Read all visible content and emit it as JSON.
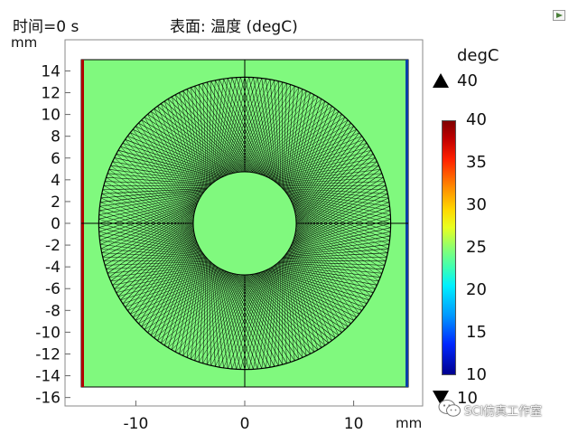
{
  "header": {
    "time_label": "时间=0 s",
    "plot_title": "表面: 温度 (degC)"
  },
  "plot": {
    "y_unit": "mm",
    "x_unit": "mm",
    "x_ticks": [
      "-10",
      "0",
      "10"
    ],
    "y_ticks": [
      "14",
      "12",
      "10",
      "8",
      "6",
      "4",
      "2",
      "0",
      "-2",
      "-4",
      "-6",
      "-8",
      "-10",
      "-12",
      "-14",
      "-16"
    ],
    "surface_color": "#80f97e",
    "left_edge_color": "#b00000",
    "right_edge_color": "#0a3ea8"
  },
  "chart_data": {
    "type": "heatmap",
    "title": "表面: 温度 (degC)",
    "xlabel": "mm",
    "ylabel": "mm",
    "xlim": [
      -16.5,
      16.5
    ],
    "ylim": [
      -17,
      16.5
    ],
    "x_ticks": [
      -10,
      0,
      10
    ],
    "y_ticks": [
      14,
      12,
      10,
      8,
      6,
      4,
      2,
      0,
      -2,
      -4,
      -6,
      -8,
      -10,
      -12,
      -14,
      -16
    ],
    "domain_square": [
      -15,
      15
    ],
    "annulus_inner_radius": 4.7,
    "annulus_outer_radius": 13.4,
    "surface_temperature_degC": 25,
    "left_boundary_temperature_degC": 40,
    "right_boundary_temperature_degC": 10,
    "colorscale": "rainbow",
    "grid": true
  },
  "colorbar": {
    "unit": "degC",
    "max_label": "40",
    "min_label": "10",
    "ticks": [
      "40",
      "35",
      "30",
      "25",
      "20",
      "15",
      "10"
    ]
  },
  "toolbar": {
    "resize_icon": "expand-corner-icon"
  },
  "watermark": {
    "text": "SCI仿真工作室",
    "icon": "wechat-icon"
  }
}
